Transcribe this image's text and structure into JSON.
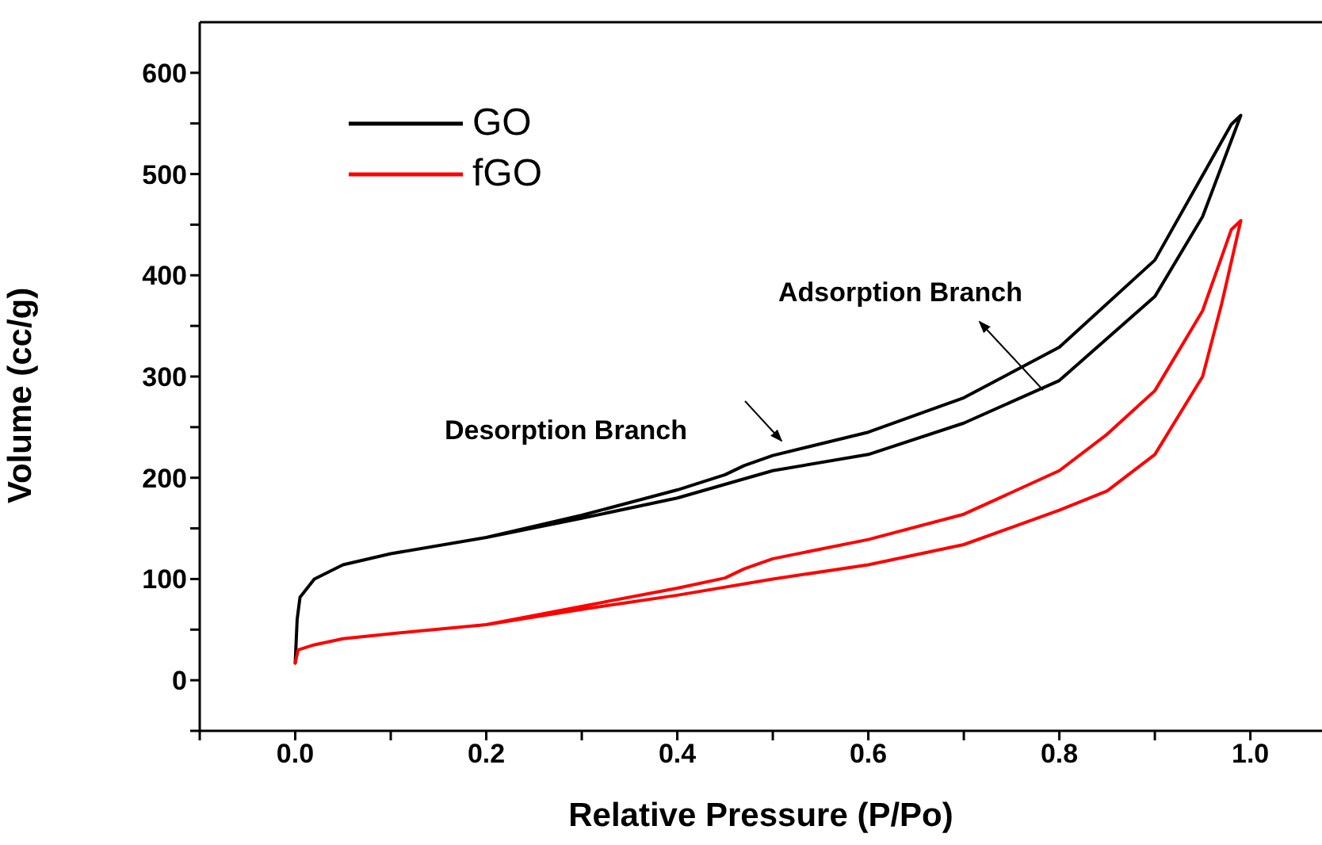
{
  "chart_data": {
    "type": "line",
    "xlabel": "Relative Pressure (P/Po)",
    "ylabel": "Volume (cc/g)",
    "xlim": [
      -0.1,
      1.075
    ],
    "ylim": [
      -50,
      650
    ],
    "xticks": [
      {
        "value": -0.1,
        "label": null
      },
      {
        "value": 0,
        "label": "0.0"
      },
      {
        "value": 0.1,
        "label": null
      },
      {
        "value": 0.2,
        "label": "0.2"
      },
      {
        "value": 0.3,
        "label": null
      },
      {
        "value": 0.4,
        "label": "0.4"
      },
      {
        "value": 0.5,
        "label": null
      },
      {
        "value": 0.6,
        "label": "0.6"
      },
      {
        "value": 0.7,
        "label": null
      },
      {
        "value": 0.8,
        "label": "0.8"
      },
      {
        "value": 0.9,
        "label": null
      },
      {
        "value": 1,
        "label": "1.0"
      }
    ],
    "yticks": [
      {
        "value": -50,
        "label": null
      },
      0,
      {
        "value": 50,
        "label": null
      },
      100,
      {
        "value": 150,
        "label": null
      },
      200,
      {
        "value": 250,
        "label": null
      },
      300,
      {
        "value": 350,
        "label": null
      },
      400,
      {
        "value": 450,
        "label": null
      },
      500,
      {
        "value": 550,
        "label": null
      },
      600
    ],
    "grid": false,
    "legend": "top left",
    "marker": "none",
    "line_style": "solid",
    "annotations": [
      "Adsorption Branch",
      "Desorption Branch"
    ],
    "series": [
      {
        "name": "GO",
        "color": "#000000",
        "x": [
          0,
          0.002,
          0.005,
          0.02,
          0.05,
          0.1,
          0.2,
          0.3,
          0.4,
          0.5,
          0.6,
          0.7,
          0.8,
          0.9,
          0.95,
          0.99,
          0.98,
          0.9,
          0.8,
          0.7,
          0.6,
          0.5,
          0.47,
          0.45,
          0.4,
          0.3,
          0.2
        ],
        "values": [
          17,
          60,
          82,
          100,
          114,
          125,
          141,
          160,
          180,
          207,
          223,
          254,
          296,
          379,
          458,
          558,
          549,
          415,
          329,
          279,
          245,
          222,
          212,
          203,
          188,
          163,
          141
        ]
      },
      {
        "name": "fGO",
        "color": "#ff0000",
        "x": [
          0,
          0.003,
          0.02,
          0.05,
          0.1,
          0.2,
          0.3,
          0.4,
          0.5,
          0.6,
          0.7,
          0.8,
          0.85,
          0.9,
          0.95,
          0.97,
          0.99,
          0.98,
          0.95,
          0.9,
          0.85,
          0.8,
          0.7,
          0.6,
          0.5,
          0.47,
          0.45,
          0.4,
          0.3,
          0.2
        ],
        "values": [
          17,
          30,
          35,
          41,
          46,
          55,
          70,
          84,
          100,
          114,
          134,
          168,
          187,
          223,
          300,
          372,
          454,
          445,
          365,
          286,
          243,
          207,
          164,
          139,
          120,
          110,
          101,
          91,
          73,
          55
        ]
      }
    ]
  }
}
